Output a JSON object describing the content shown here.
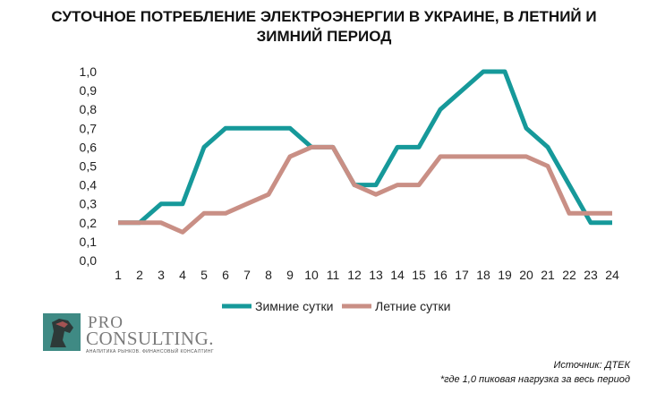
{
  "title_lines": [
    "СУТОЧНОЕ ПОТРЕБЛЕНИЕ ЭЛЕКТРОЭНЕРГИИ В УКРАИНЕ, В ЛЕТНИЙ И",
    "ЗИМНИЙ ПЕРИОД"
  ],
  "chart_data": {
    "type": "line",
    "title": "СУТОЧНОЕ ПОТРЕБЛЕНИЕ ЭЛЕКТРОЭНЕРГИИ В УКРАИНЕ, В ЛЕТНИЙ И ЗИМНИЙ ПЕРИОД",
    "x": [
      1,
      2,
      3,
      4,
      5,
      6,
      7,
      8,
      9,
      10,
      11,
      12,
      13,
      14,
      15,
      16,
      17,
      18,
      19,
      20,
      21,
      22,
      23,
      24
    ],
    "y_ticks": [
      "0,0",
      "0,1",
      "0,2",
      "0,3",
      "0,4",
      "0,5",
      "0,6",
      "0,7",
      "0,8",
      "0,9",
      "1,0"
    ],
    "ylim": [
      0,
      1.0
    ],
    "grid": false,
    "legend_position": "bottom",
    "series": [
      {
        "name": "Зимние сутки",
        "color": "#16999a",
        "values": [
          0.2,
          0.2,
          0.3,
          0.3,
          0.6,
          0.7,
          0.7,
          0.7,
          0.7,
          0.6,
          0.6,
          0.4,
          0.4,
          0.6,
          0.6,
          0.8,
          0.9,
          1.0,
          1.0,
          0.7,
          0.6,
          0.4,
          0.2,
          0.2
        ]
      },
      {
        "name": "Летние сутки",
        "color": "#c98f85",
        "values": [
          0.2,
          0.2,
          0.2,
          0.15,
          0.25,
          0.25,
          0.3,
          0.35,
          0.55,
          0.6,
          0.6,
          0.4,
          0.35,
          0.4,
          0.4,
          0.55,
          0.55,
          0.55,
          0.55,
          0.55,
          0.5,
          0.25,
          0.25,
          0.25
        ]
      }
    ]
  },
  "logo": {
    "pro": "PRO",
    "consulting": "CONSULTING.",
    "tagline": "АНАЛИТИКА РЫНКОВ. ФИНАНСОВЫЙ КОНСАЛТИНГ"
  },
  "source": "Источник: ДТЕК",
  "footnote": "*где 1,0 пиковая нагрузка за весь период"
}
